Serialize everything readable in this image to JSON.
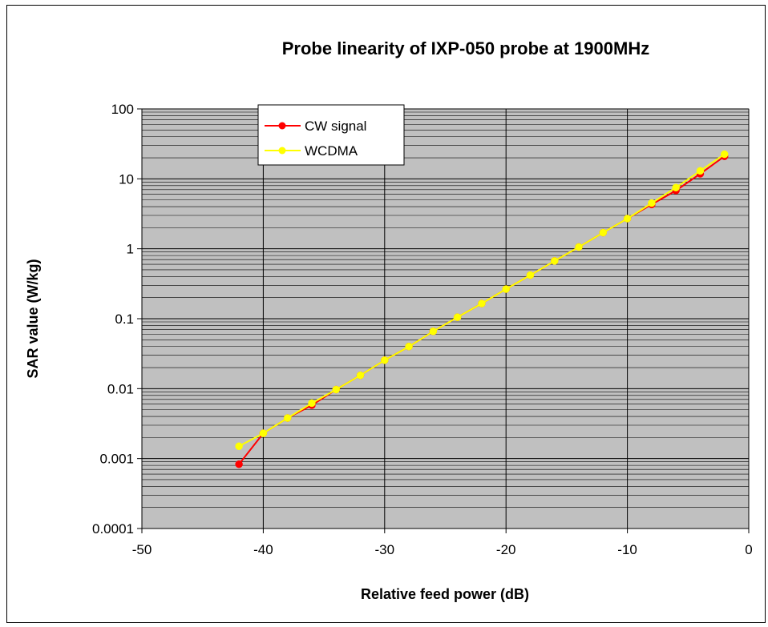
{
  "chart_data": {
    "type": "line",
    "title": "Probe linearity of IXP-050 probe at 1900MHz",
    "xlabel": "Relative feed power (dB)",
    "ylabel": "SAR value (W/kg)",
    "xlim": [
      -50,
      0
    ],
    "ylim": [
      0.0001,
      100
    ],
    "y_scale": "log",
    "x_ticks": [
      "-50",
      "-40",
      "-30",
      "-20",
      "-10",
      "0"
    ],
    "y_ticks": [
      "100",
      "10",
      "1",
      "0.1",
      "0.01",
      "0.001",
      "0.0001"
    ],
    "grid": true,
    "plot_background": "#c0c0c0",
    "legend_position": "top-left",
    "series": [
      {
        "name": "CW signal",
        "color": "#ff0000",
        "x": [
          -42,
          -40,
          -38,
          -36,
          -34,
          -32,
          -30,
          -28,
          -26,
          -24,
          -22,
          -20,
          -18,
          -16,
          -14,
          -12,
          -10,
          -8,
          -6,
          -4,
          -2
        ],
        "values": [
          0.00083,
          0.0023,
          0.0038,
          0.0058,
          0.0097,
          0.0155,
          0.0255,
          0.04,
          0.066,
          0.105,
          0.165,
          0.265,
          0.42,
          0.67,
          1.06,
          1.7,
          2.7,
          4.3,
          6.8,
          11.8,
          21
        ]
      },
      {
        "name": "WCDMA",
        "color": "#ffff00",
        "x": [
          -42,
          -40,
          -38,
          -36,
          -34,
          -32,
          -30,
          -28,
          -26,
          -24,
          -22,
          -20,
          -18,
          -16,
          -14,
          -12,
          -10,
          -8,
          -6,
          -4,
          -2
        ],
        "values": [
          0.0015,
          0.0023,
          0.0038,
          0.0062,
          0.0097,
          0.0155,
          0.0255,
          0.04,
          0.066,
          0.105,
          0.165,
          0.265,
          0.42,
          0.67,
          1.06,
          1.7,
          2.7,
          4.5,
          7.5,
          13,
          22.5
        ]
      }
    ]
  }
}
